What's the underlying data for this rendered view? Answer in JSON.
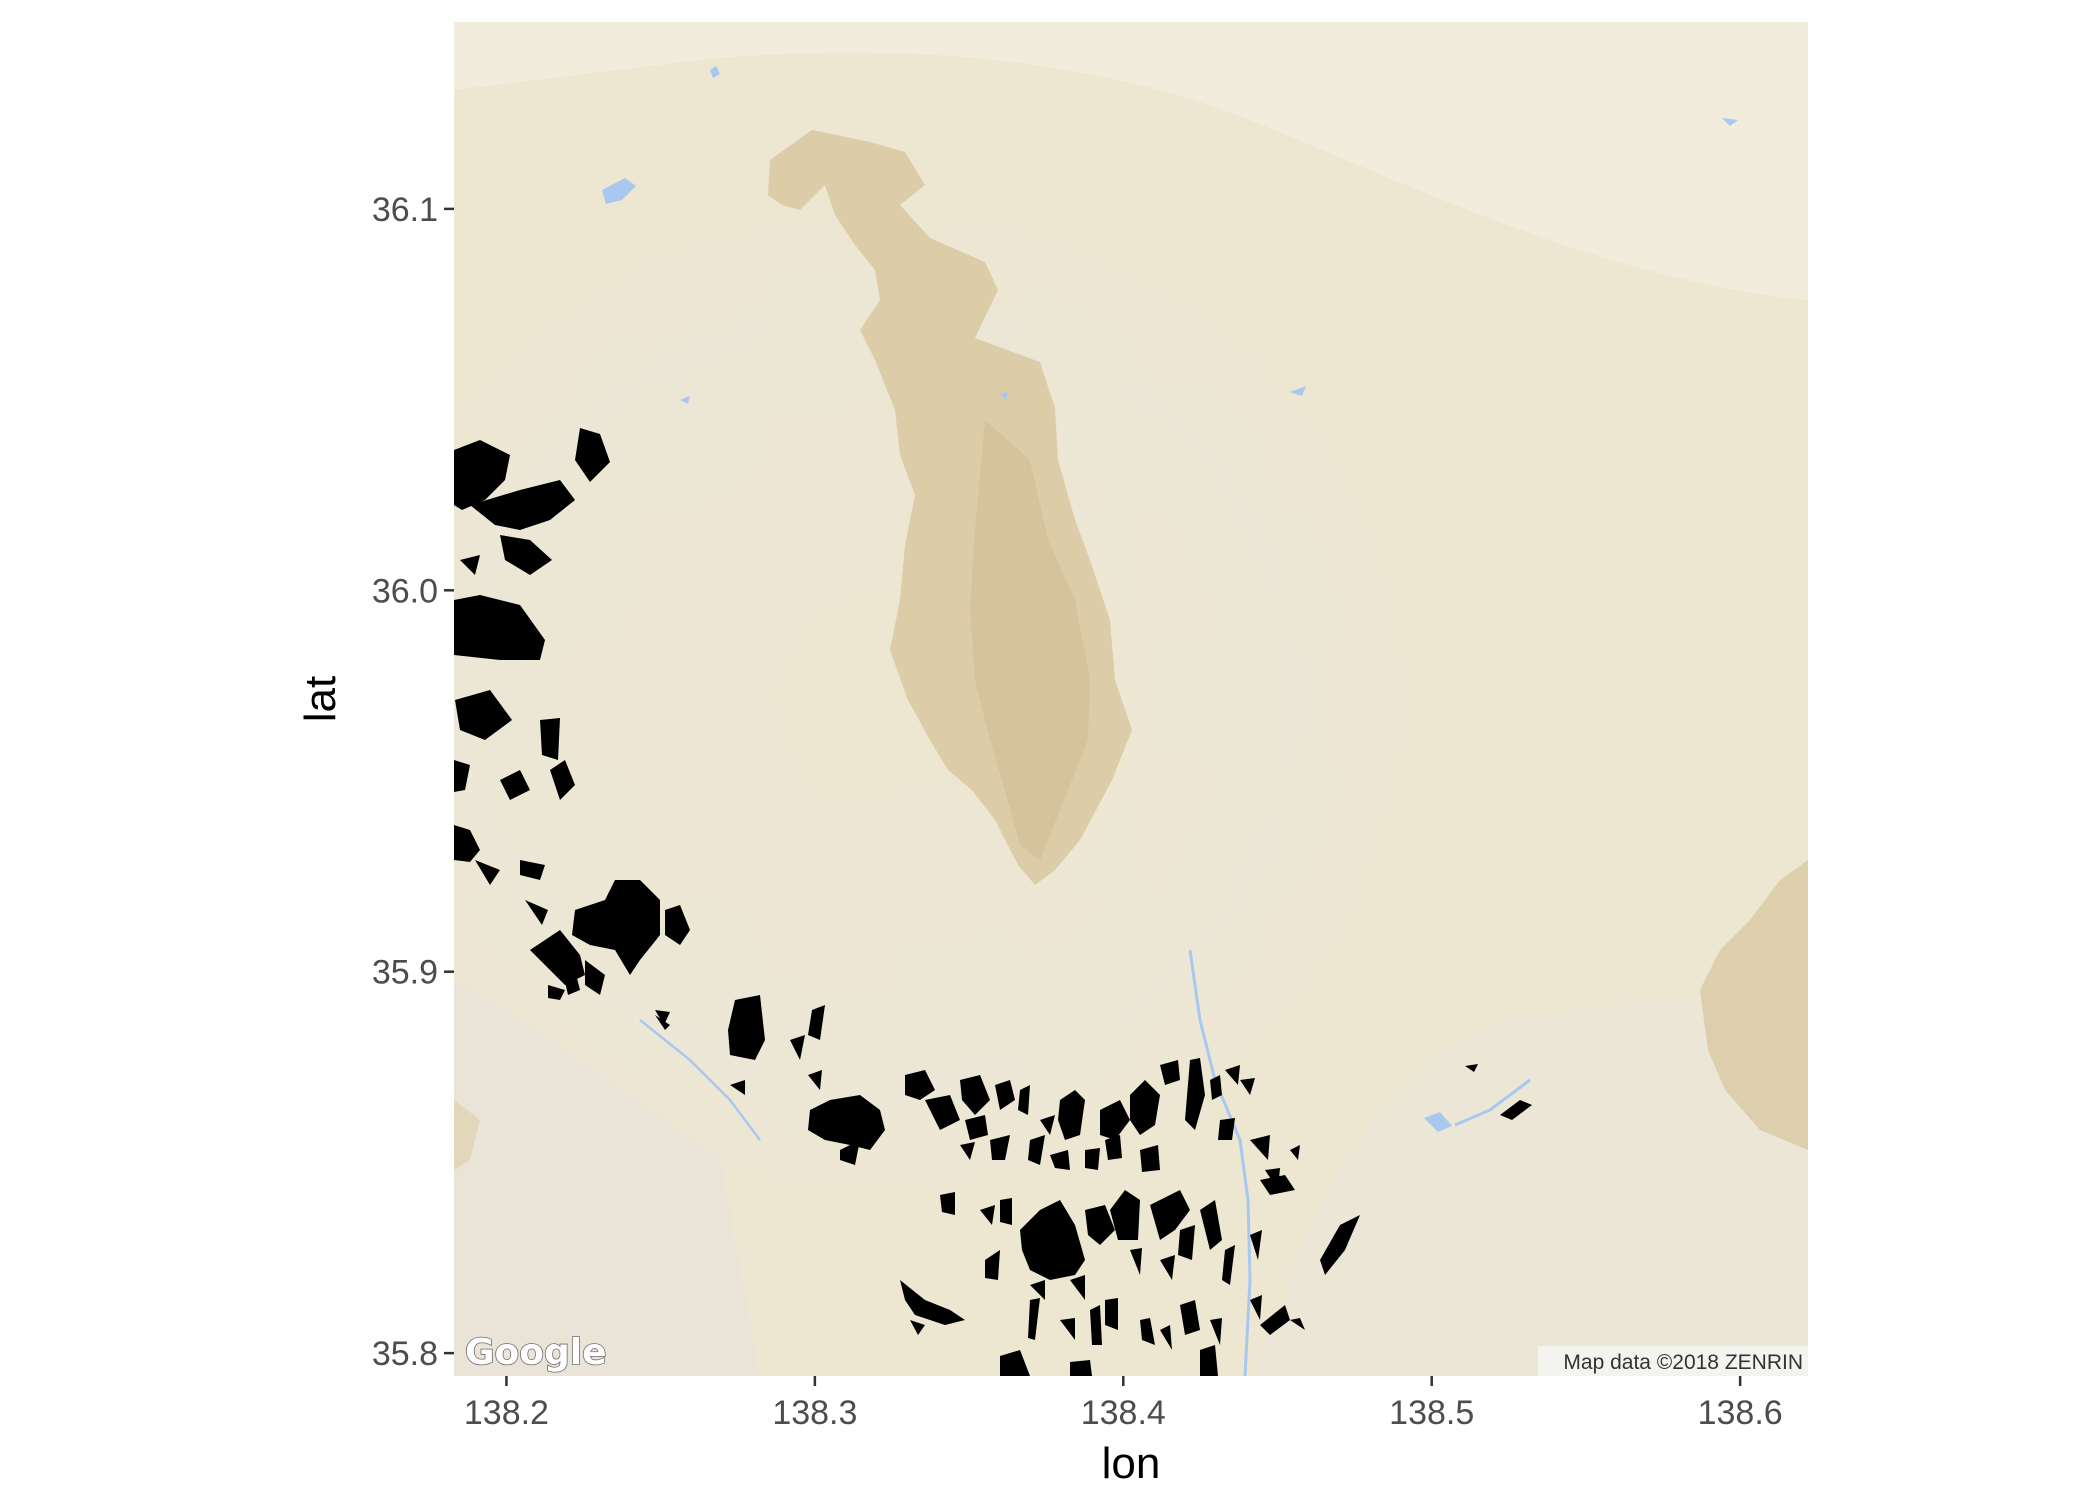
{
  "map": {
    "x_axis": {
      "title": "lon",
      "ticks": [
        138.2,
        138.3,
        138.4,
        138.5,
        138.6
      ],
      "tick_labels": [
        "138.2",
        "138.3",
        "138.4",
        "138.5",
        "138.6"
      ],
      "range": [
        138.183,
        138.622
      ]
    },
    "y_axis": {
      "title": "lat",
      "ticks": [
        35.8,
        35.9,
        36.0,
        36.1
      ],
      "tick_labels": [
        "35.8",
        "35.9",
        "36.0",
        "36.1"
      ],
      "range": [
        35.794,
        36.149
      ]
    },
    "basemap": {
      "provider_logo": "Google",
      "attribution": "Map data ©2018 ZENRIN",
      "terrain_color": "#ede6d0",
      "mountain_color": "#d9c9a6",
      "water_color": "#a9c8f0"
    },
    "overlay": {
      "fill_color": "#000000",
      "masked_center": [
        138.36,
        35.985
      ],
      "masked_radius_deg_lat": 0.11
    }
  }
}
